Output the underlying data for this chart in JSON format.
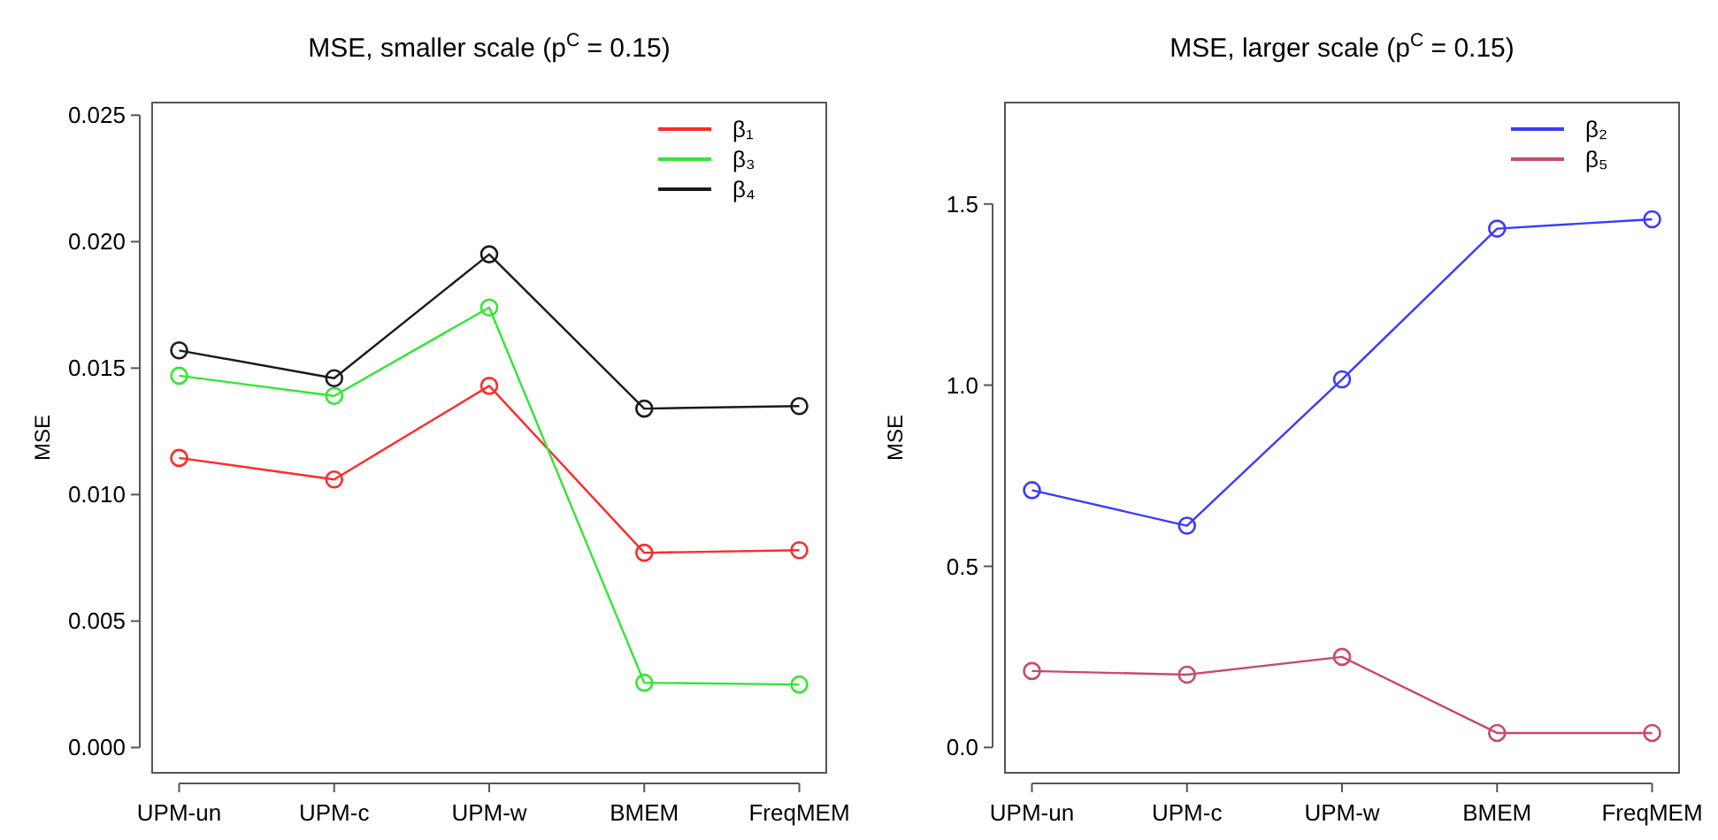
{
  "chart_data": [
    {
      "type": "line",
      "title": "MSE, smaller scale (p$^{C}$ = 0.15)",
      "ylabel": "MSE",
      "categories": [
        "UPM-un",
        "UPM-c",
        "UPM-w",
        "BMEM",
        "FreqMEM"
      ],
      "ylim": [
        -0.001,
        0.0255
      ],
      "yticks": [
        {
          "value": 0,
          "label": "0.000"
        },
        {
          "value": 0.005,
          "label": "0.005"
        },
        {
          "value": 0.01,
          "label": "0.010"
        },
        {
          "value": 0.015,
          "label": "0.015"
        },
        {
          "value": 0.02,
          "label": "0.020"
        },
        {
          "value": 0.025,
          "label": "0.025"
        }
      ],
      "marker": "circle",
      "legend": "top right",
      "grid": false,
      "series": [
        {
          "name": "β₁",
          "color": "#ff2a2a",
          "values": [
            0.01145,
            0.0106,
            0.0143,
            0.0077,
            0.0078
          ]
        },
        {
          "name": "β₃",
          "color": "#33e633",
          "values": [
            0.0147,
            0.0139,
            0.0174,
            0.00256,
            0.00249
          ]
        },
        {
          "name": "β₄",
          "color": "#1a1a1a",
          "values": [
            0.0157,
            0.0146,
            0.0195,
            0.0134,
            0.0135
          ]
        }
      ]
    },
    {
      "type": "line",
      "title": "MSE, larger scale (p$^{C}$ = 0.15)",
      "ylabel": "MSE",
      "categories": [
        "UPM-un",
        "UPM-c",
        "UPM-w",
        "BMEM",
        "FreqMEM"
      ],
      "ylim": [
        -0.07,
        1.78
      ],
      "yticks": [
        {
          "value": 0,
          "label": "0.0"
        },
        {
          "value": 0.5,
          "label": "0.5"
        },
        {
          "value": 1,
          "label": "1.0"
        },
        {
          "value": 1.5,
          "label": "1.5"
        }
      ],
      "marker": "circle",
      "legend": "top right",
      "grid": false,
      "series": [
        {
          "name": "β₂",
          "color": "#3a3aff",
          "values": [
            0.71,
            0.612,
            1.016,
            1.432,
            1.458
          ]
        },
        {
          "name": "β₅",
          "color": "#c84a6a",
          "values": [
            0.211,
            0.201,
            0.25,
            0.04,
            0.04
          ]
        }
      ]
    }
  ]
}
